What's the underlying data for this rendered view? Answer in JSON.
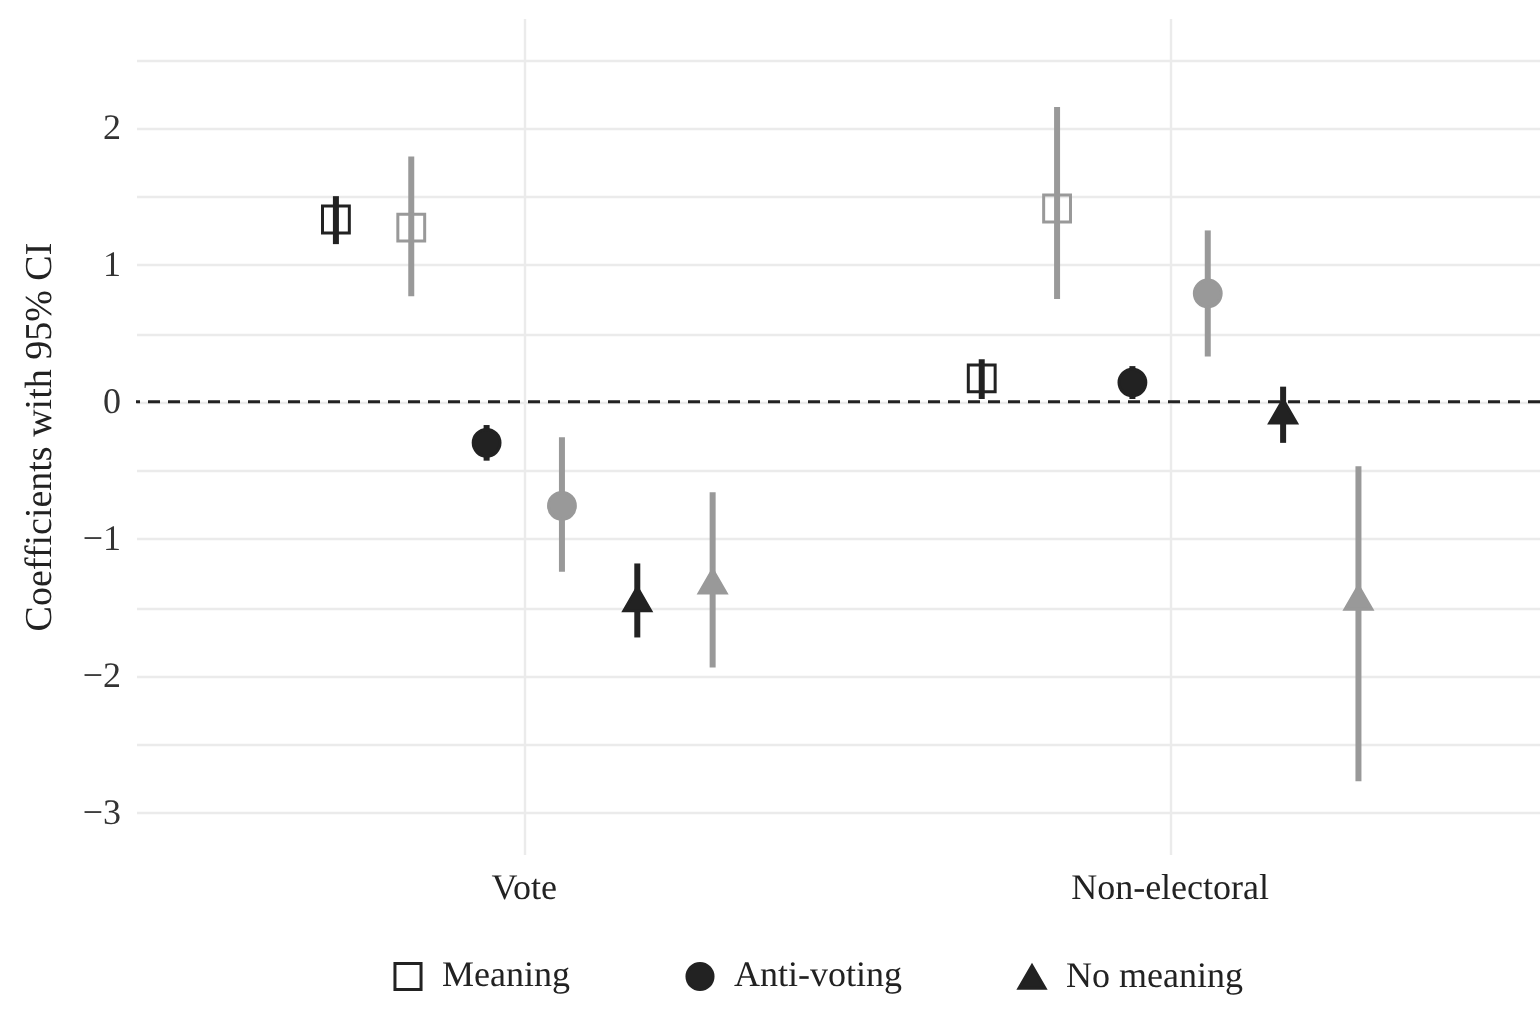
{
  "chart_data": {
    "type": "scatter",
    "ylabel": "Coefficients with 95% CI",
    "categories": [
      "Vote",
      "Non-electoral"
    ],
    "ylim": [
      -3.3,
      2.8
    ],
    "yticks": [
      {
        "value": -3,
        "label": "−3"
      },
      {
        "value": -2.5,
        "label": null
      },
      {
        "value": -2,
        "label": "−2"
      },
      {
        "value": -1.5,
        "label": null
      },
      {
        "value": -1,
        "label": "−1"
      },
      {
        "value": -0.5,
        "label": null
      },
      0,
      {
        "value": 0.5,
        "label": null
      },
      1,
      {
        "value": 1.5,
        "label": null
      },
      2,
      {
        "value": 2.5,
        "label": null
      }
    ],
    "grid": true,
    "legend": "bottom",
    "ref_lines": [
      {
        "axis": "y",
        "value": 0,
        "color": "#222222",
        "line_style": "dashed"
      }
    ],
    "series": [
      {
        "name": "Meaning",
        "color": "#222222",
        "marker": "square",
        "values": [
          1.33,
          0.17
        ],
        "errors": [
          [
            1.15,
            1.5
          ],
          [
            0.02,
            0.31
          ]
        ]
      },
      {
        "color": "#999999",
        "marker": "square",
        "values": [
          1.27,
          1.41
        ],
        "errors": [
          [
            0.77,
            1.79
          ],
          [
            0.75,
            2.15
          ]
        ]
      },
      {
        "name": "Anti-voting",
        "color": "#222222",
        "marker": "circle",
        "values": [
          -0.3,
          0.14
        ],
        "errors": [
          [
            -0.43,
            -0.17
          ],
          [
            0.02,
            0.26
          ]
        ]
      },
      {
        "color": "#999999",
        "marker": "circle",
        "values": [
          -0.76,
          0.79
        ],
        "errors": [
          [
            -1.24,
            -0.26
          ],
          [
            0.33,
            1.25
          ]
        ]
      },
      {
        "name": "No meaning",
        "color": "#222222",
        "marker": "triangle",
        "values": [
          -1.44,
          -0.07
        ],
        "errors": [
          [
            -1.72,
            -1.18
          ],
          [
            -0.3,
            0.11
          ]
        ]
      },
      {
        "color": "#999999",
        "marker": "triangle",
        "values": [
          -1.31,
          -1.43
        ],
        "errors": [
          [
            -1.94,
            -0.66
          ],
          [
            -2.77,
            -0.47
          ]
        ]
      }
    ]
  }
}
